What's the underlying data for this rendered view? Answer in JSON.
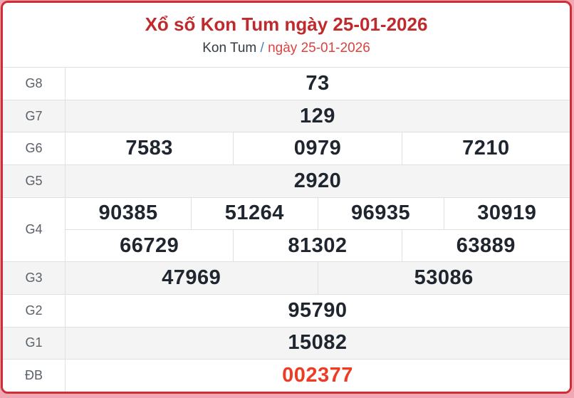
{
  "header": {
    "title": "Xổ số Kon Tum ngày 25-01-2026",
    "breadcrumb": {
      "station": "Kon Tum",
      "separator": "/",
      "date": "ngày 25-01-2026"
    }
  },
  "results": {
    "g8": {
      "label": "G8",
      "values": [
        "73"
      ]
    },
    "g7": {
      "label": "G7",
      "values": [
        "129"
      ]
    },
    "g6": {
      "label": "G6",
      "values": [
        "7583",
        "0979",
        "7210"
      ]
    },
    "g5": {
      "label": "G5",
      "values": [
        "2920"
      ]
    },
    "g4": {
      "label": "G4",
      "line1": [
        "90385",
        "51264",
        "96935",
        "30919"
      ],
      "line2": [
        "66729",
        "81302",
        "63889"
      ]
    },
    "g3": {
      "label": "G3",
      "values": [
        "47969",
        "53086"
      ]
    },
    "g2": {
      "label": "G2",
      "values": [
        "95790"
      ]
    },
    "g1": {
      "label": "G1",
      "values": [
        "15082"
      ]
    },
    "db": {
      "label": "ĐB",
      "values": [
        "002377"
      ]
    }
  },
  "colors": {
    "frame_border": "#cf2e36",
    "page_background": "#f0a9b4",
    "title_red": "#c02a2d",
    "breadcrumb_date_red": "#dc423e",
    "breadcrumb_slash_blue": "#4b7fb5",
    "shaded_row": "#f4f4f4",
    "number_dark": "#1f2630",
    "special_prize_red": "#ef3b24"
  }
}
